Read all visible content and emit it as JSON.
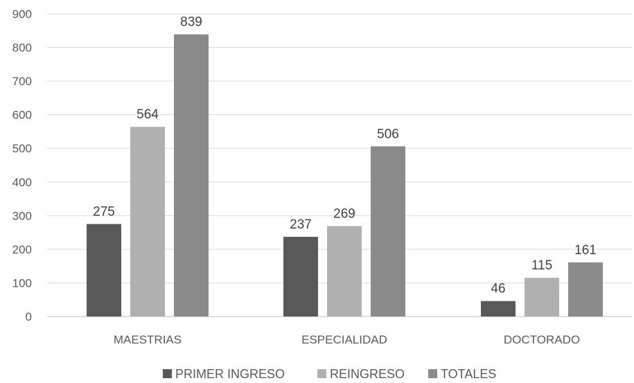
{
  "chart_data": {
    "type": "bar",
    "categories": [
      "MAESTRIAS",
      "ESPECIALIDAD",
      "DOCTORADO"
    ],
    "series": [
      {
        "name": "PRIMER INGRESO",
        "values": [
          275,
          237,
          46
        ],
        "color": "#595959"
      },
      {
        "name": "REINGRESO",
        "values": [
          564,
          269,
          115
        ],
        "color": "#b0b0b0"
      },
      {
        "name": "TOTALES",
        "values": [
          839,
          506,
          161
        ],
        "color": "#8a8a8a"
      }
    ],
    "ylim": [
      0,
      900
    ],
    "yticks": [
      0,
      100,
      200,
      300,
      400,
      500,
      600,
      700,
      800,
      900
    ],
    "grid": true,
    "legend": "bottom",
    "data_labels": true
  }
}
